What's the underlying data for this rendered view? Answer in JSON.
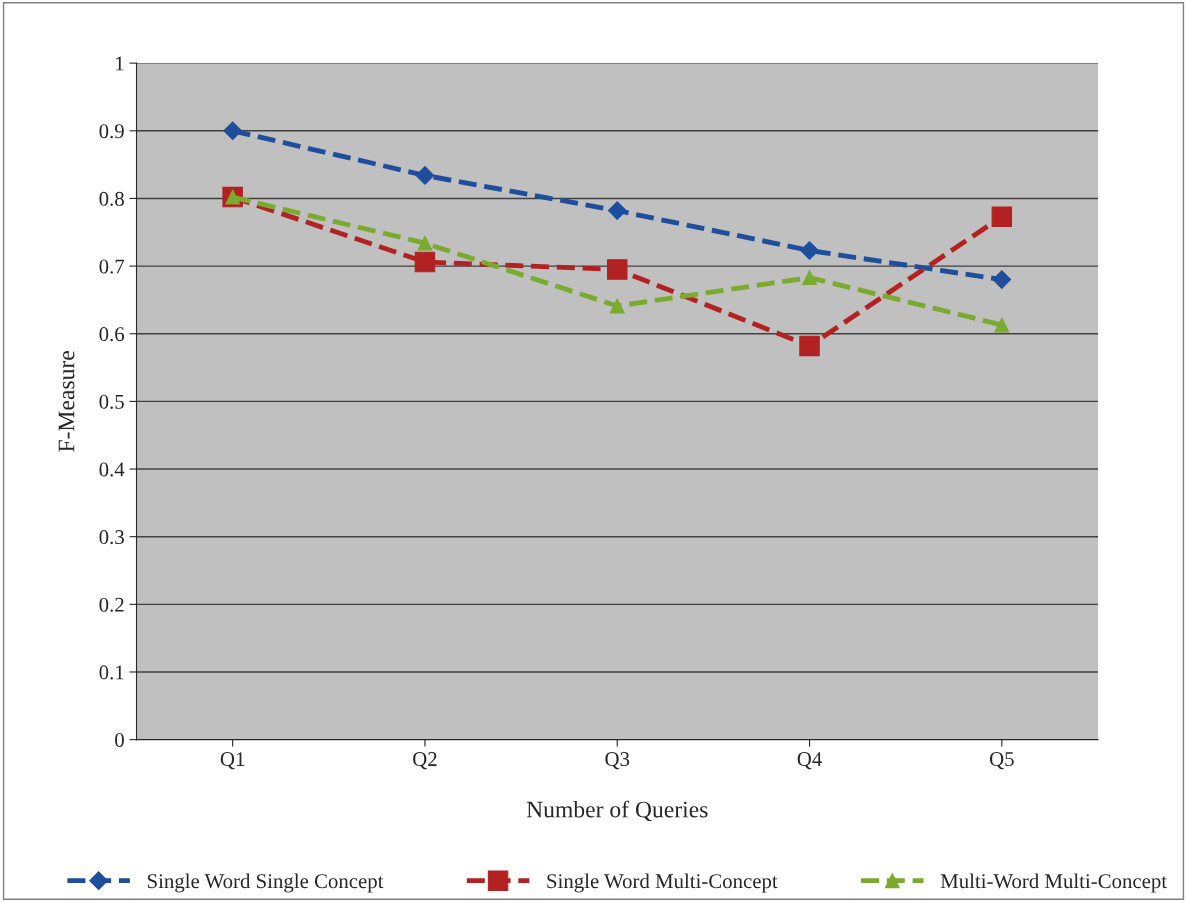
{
  "chart_data": {
    "type": "line",
    "xlabel": "Number of Queries",
    "ylabel": "F-Measure",
    "categories": [
      "Q1",
      "Q2",
      "Q3",
      "Q4",
      "Q5"
    ],
    "series": [
      {
        "name": "Single Word Single Concept",
        "color": "#1f4e9c",
        "marker": "diamond",
        "values": [
          0.9,
          0.834,
          0.782,
          0.723,
          0.68
        ]
      },
      {
        "name": "Single Word Multi-Concept",
        "color": "#b22222",
        "marker": "square",
        "values": [
          0.802,
          0.706,
          0.695,
          0.582,
          0.773
        ]
      },
      {
        "name": "Multi-Word Multi-Concept",
        "color": "#7aab2e",
        "marker": "triangle",
        "values": [
          0.802,
          0.734,
          0.641,
          0.683,
          0.613
        ]
      }
    ],
    "ylim": [
      0,
      1
    ],
    "yticks": [
      0,
      0.1,
      0.2,
      0.3,
      0.4,
      0.5,
      0.6,
      0.7,
      0.8,
      0.9,
      1
    ],
    "grid": "y",
    "legend": "bottom",
    "line_style": "dashed"
  }
}
